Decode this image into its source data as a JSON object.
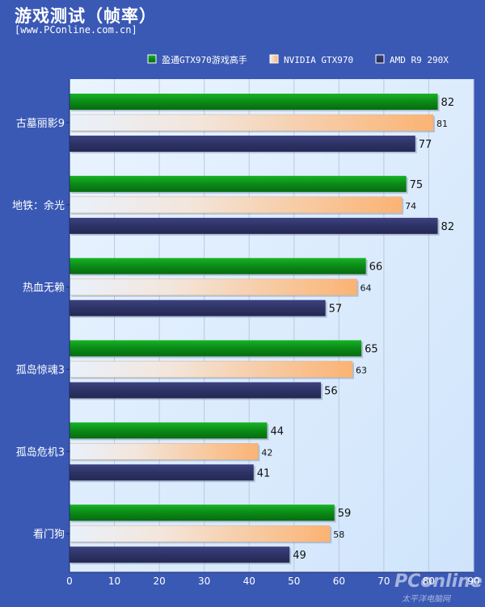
{
  "header": {
    "title": "游戏测试（帧率）",
    "source": "[www.PConline.com.cn]"
  },
  "watermark": {
    "brand": "PConline",
    "sub": "太平洋电脑网"
  },
  "chart_data": {
    "type": "bar",
    "orientation": "horizontal",
    "categories": [
      "古墓丽影9",
      "地铁：余光",
      "热血无赖",
      "孤岛惊魂3",
      "孤岛危机3",
      "看门狗"
    ],
    "series": [
      {
        "name": "盈通GTX970游戏高手",
        "values": [
          82,
          75,
          66,
          65,
          44,
          59
        ],
        "color": "#0b8a16"
      },
      {
        "name": "NVIDIA GTX970",
        "values": [
          81,
          74,
          64,
          63,
          42,
          58
        ],
        "color": "#f7b77c"
      },
      {
        "name": "AMD R9 290X",
        "values": [
          77,
          82,
          57,
          56,
          41,
          49
        ],
        "color": "#30346a"
      }
    ],
    "x_ticks": [
      0,
      10,
      20,
      30,
      40,
      50,
      60,
      70,
      80,
      90
    ],
    "xlim": [
      0,
      90
    ],
    "grid": true,
    "legend_position": "top-right"
  }
}
